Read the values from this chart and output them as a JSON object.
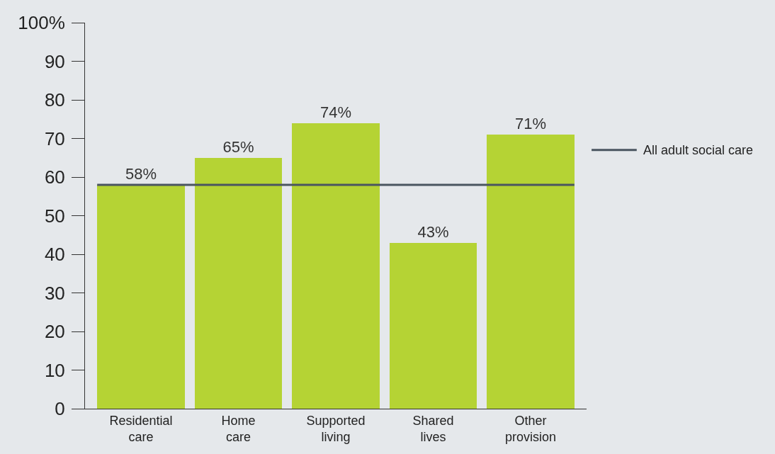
{
  "chart_data": {
    "type": "bar",
    "categories": [
      "Residential care",
      "Home care",
      "Supported living",
      "Shared lives",
      "Other provision"
    ],
    "values": [
      58,
      65,
      74,
      43,
      71
    ],
    "value_labels": [
      "58%",
      "65%",
      "74%",
      "43%",
      "71%"
    ],
    "color": "#b5d334",
    "ylim": [
      0,
      100
    ],
    "yticks": [
      0,
      10,
      20,
      30,
      40,
      50,
      60,
      70,
      80,
      90,
      {
        "value": 100,
        "label": "100%"
      }
    ],
    "ref_lines": [
      {
        "axis": "y",
        "value": 58,
        "label": "All adult social care",
        "color": "#4a5560"
      }
    ]
  }
}
